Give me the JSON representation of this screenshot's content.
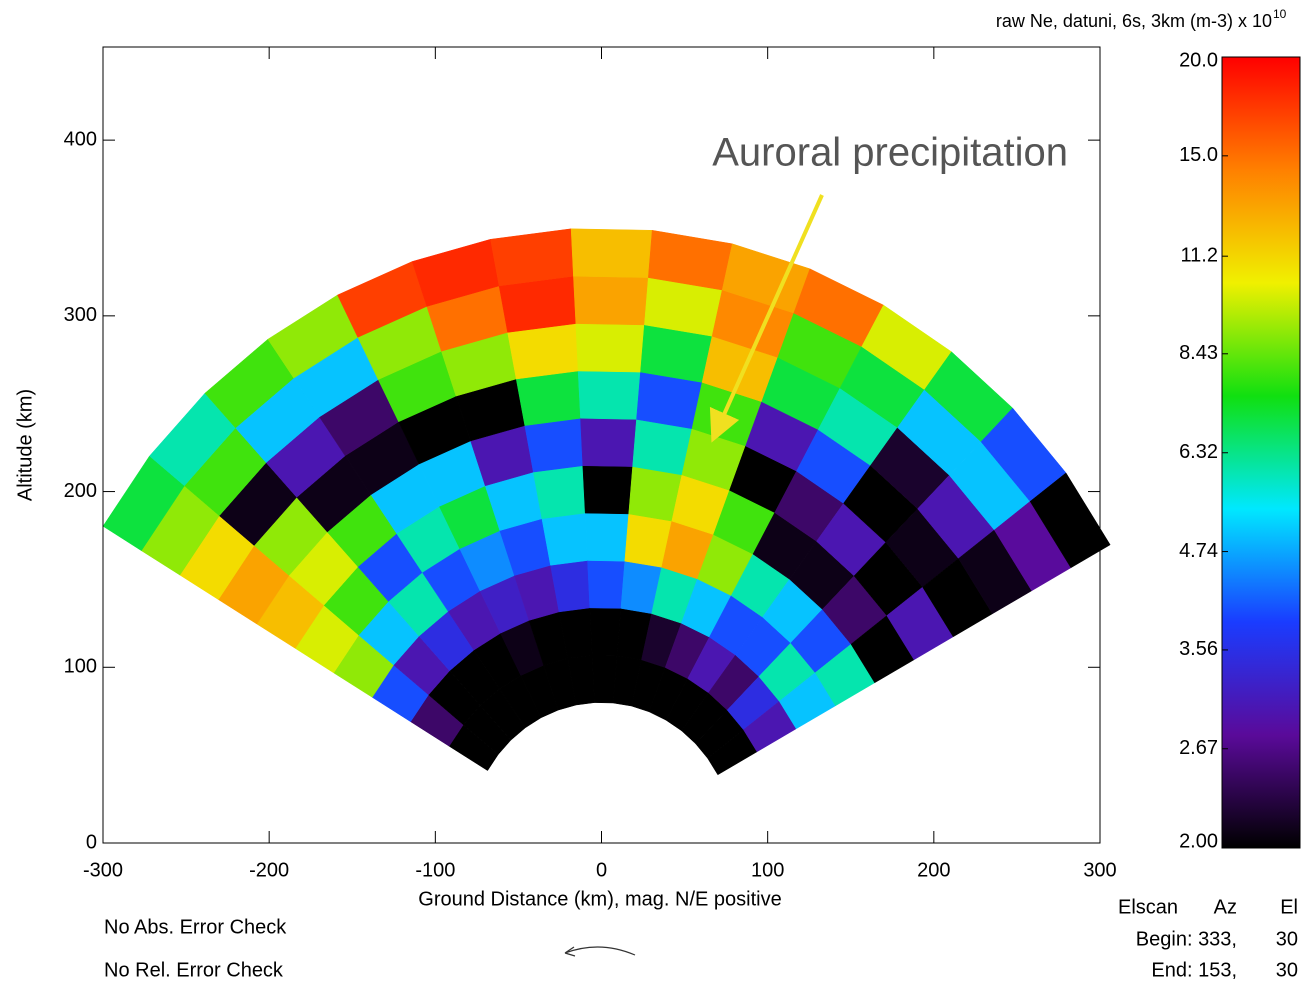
{
  "chart_data": {
    "type": "fan",
    "x_label": "Ground Distance (km), mag. N/E positive",
    "y_label": "Altitude (km)",
    "xlim": [
      -300,
      300
    ],
    "ylim": [
      0,
      453
    ],
    "xticks": [
      -300,
      -200,
      -100,
      0,
      100,
      200,
      300
    ],
    "yticks": [
      0,
      100,
      200,
      300,
      400
    ],
    "colorbar_label": "raw Ne, datuni, 6s, 3km (m-3) x 10",
    "colorbar_label_exponent": "10",
    "color_scale": "log",
    "clim": [
      2,
      20
    ],
    "colorbar_ticks": [
      {
        "value": 20,
        "label": "20.0"
      },
      {
        "value": 15,
        "label": "15.0"
      },
      11.2,
      8.43,
      6.32,
      4.74,
      3.56,
      2.67,
      {
        "value": 2,
        "label": "2.00"
      }
    ],
    "colormap": [
      "#000000",
      "#5a0a9a",
      "#1a3cff",
      "#00e8ff",
      "#10e010",
      "#f0f000",
      "#ff8000",
      "#ff0000"
    ],
    "beam_width_deg": 8,
    "beam_angles": [
      145,
      137,
      129,
      121,
      113,
      105,
      97,
      89,
      81,
      73,
      65,
      57,
      49,
      41,
      33
    ],
    "gate_edges_km": [
      80,
      107,
      134,
      161,
      188,
      215,
      242,
      269,
      296,
      323,
      350
    ],
    "values": [
      [
        2,
        2.5,
        4,
        9,
        10,
        12,
        13,
        11,
        9,
        7
      ],
      [
        2,
        2,
        3,
        5,
        8,
        10,
        9,
        2.1,
        8,
        6
      ],
      [
        2,
        2,
        3.5,
        6,
        4,
        8,
        2.1,
        3,
        5,
        8
      ],
      [
        2,
        2,
        3,
        4,
        6,
        5,
        2.1,
        2.5,
        5,
        9
      ],
      [
        2,
        2.1,
        3.2,
        4.5,
        7,
        5,
        2,
        8,
        9,
        17
      ],
      [
        2,
        2,
        3,
        4,
        5,
        3,
        2,
        9,
        15,
        18
      ],
      [
        2,
        2,
        3.5,
        5,
        6,
        4,
        7,
        11,
        18,
        17
      ],
      [
        2,
        2,
        4,
        5,
        2,
        3,
        6,
        10,
        13,
        12
      ],
      [
        2,
        2,
        4.5,
        11,
        9,
        6,
        4,
        7,
        10,
        15
      ],
      [
        2,
        2.2,
        6,
        13,
        11,
        9,
        8,
        12,
        14,
        13
      ],
      [
        2,
        2.5,
        5,
        9,
        8,
        2,
        3,
        7,
        8,
        15
      ],
      [
        2,
        3,
        4,
        6,
        2.1,
        2.5,
        4,
        6,
        7,
        10
      ],
      [
        2,
        2.5,
        4,
        5,
        2.1,
        3,
        2,
        2.2,
        5,
        7
      ],
      [
        2,
        3.5,
        6,
        4,
        2.5,
        2,
        2.1,
        3,
        5,
        4
      ],
      [
        2,
        3,
        5,
        6,
        2,
        3,
        2,
        2.1,
        2.8,
        2
      ]
    ],
    "annotation": "Auroral precipitation",
    "notes": [
      "No Abs. Error Check",
      "No Rel. Error Check"
    ],
    "scan_info": {
      "header": [
        "Elscan",
        "Az",
        "El"
      ],
      "rows": [
        [
          "Begin: 333,",
          "30"
        ],
        [
          "End: 153,",
          "30"
        ]
      ]
    }
  }
}
